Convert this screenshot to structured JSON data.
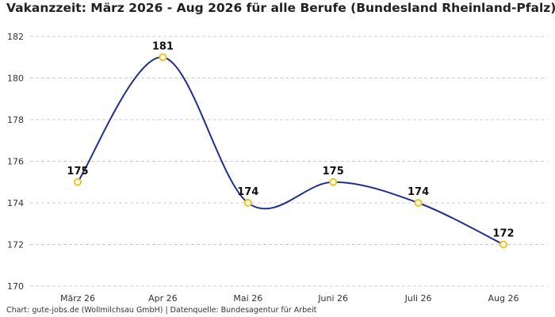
{
  "chart_data": {
    "type": "line",
    "title": "Vakanzzeit: März 2026 - Aug 2026 für alle Berufe (Bundesland Rheinland-Pfalz)",
    "categories": [
      "März 26",
      "Apr 26",
      "Mai 26",
      "Juni 26",
      "Juli 26",
      "Aug 26"
    ],
    "series": [
      {
        "values": [
          175,
          181,
          174,
          175,
          174,
          172
        ]
      }
    ],
    "data_labels": [
      "175",
      "181",
      "174",
      "175",
      "174",
      "172"
    ],
    "ylim": [
      170,
      182
    ],
    "yticks": [
      170,
      172,
      174,
      176,
      178,
      180,
      182
    ],
    "grid": true,
    "line_color": "#1f2f8a",
    "marker_color": "#f2c21b",
    "grid_color": "#cccccc"
  },
  "footer": {
    "source": "Chart: gute-jobs.de (Wollmilchsau GmbH) | Datenquelle: Bundesagentur für Arbeit"
  }
}
